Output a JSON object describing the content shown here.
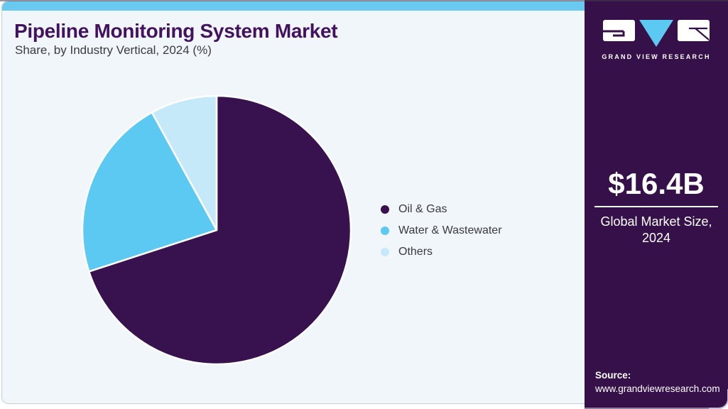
{
  "header": {
    "title": "Pipeline Monitoring System Market",
    "subtitle": "Share, by Industry Vertical, 2024 (%)"
  },
  "chart_data": {
    "type": "pie",
    "title": "Pipeline Monitoring System Market Share, by Industry Vertical, 2024 (%)",
    "categories": [
      "Oil & Gas",
      "Water & Wastewater",
      "Others"
    ],
    "values": [
      70,
      22,
      8
    ],
    "unit": "%",
    "colors": [
      "#38124e",
      "#5bc9f2",
      "#c6e9fa"
    ],
    "start_angle_deg": 0,
    "direction": "clockwise",
    "legend_position": "right",
    "labels_shown_on_chart": false
  },
  "sidebar": {
    "logo": {
      "brand": "GRAND VIEW RESEARCH"
    },
    "market_size": {
      "value": "$16.4B",
      "label_line1": "Global Market Size,",
      "label_line2": "2024"
    },
    "source": {
      "label": "Source:",
      "url": "www.grandviewresearch.com"
    }
  },
  "colors": {
    "accent_bar": "#69c9f1",
    "panel_background": "#f0f6fa",
    "sidebar_background": "#361048",
    "title_text": "#43125f",
    "body_text": "#3c3b43",
    "slice_oil_gas": "#38124e",
    "slice_water_wastewater": "#5bc9f2",
    "slice_others": "#c6e9fa"
  }
}
